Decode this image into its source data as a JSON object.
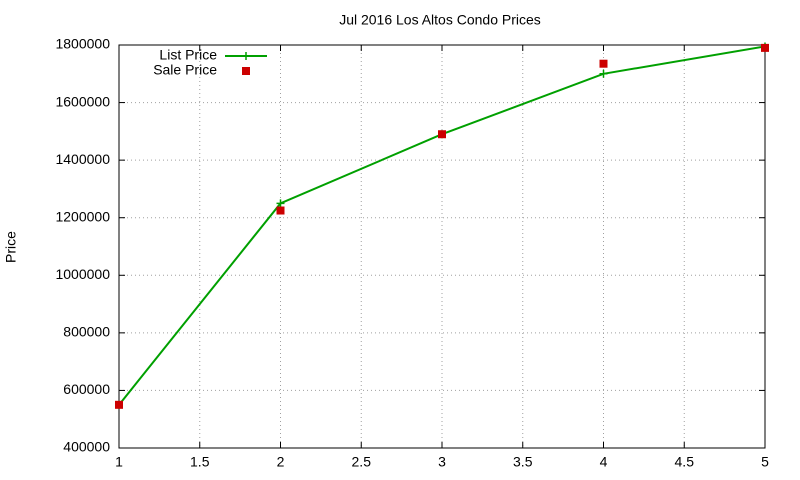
{
  "chart_data": {
    "type": "line",
    "title": "Jul 2016 Los Altos Condo Prices",
    "y_label": "Price",
    "x": [
      1,
      2,
      3,
      4,
      5
    ],
    "series": [
      {
        "name": "List Price",
        "color": "#00a000",
        "line": true,
        "marker": "plus",
        "values": [
          550000,
          1250000,
          1490000,
          1700000,
          1795000
        ]
      },
      {
        "name": "Sale Price",
        "color": "#cc0000",
        "line": false,
        "marker": "square",
        "values": [
          550000,
          1225000,
          1490000,
          1735000,
          1790000
        ]
      }
    ],
    "xlim": [
      1,
      5
    ],
    "xticks": [
      1,
      1.5,
      2,
      2.5,
      3,
      3.5,
      4,
      4.5,
      5
    ],
    "ylim": [
      400000,
      1800000
    ],
    "yticks": [
      400000,
      600000,
      800000,
      1000000,
      1200000,
      1400000,
      1600000,
      1800000
    ],
    "grid": true,
    "legend": "top-left"
  }
}
